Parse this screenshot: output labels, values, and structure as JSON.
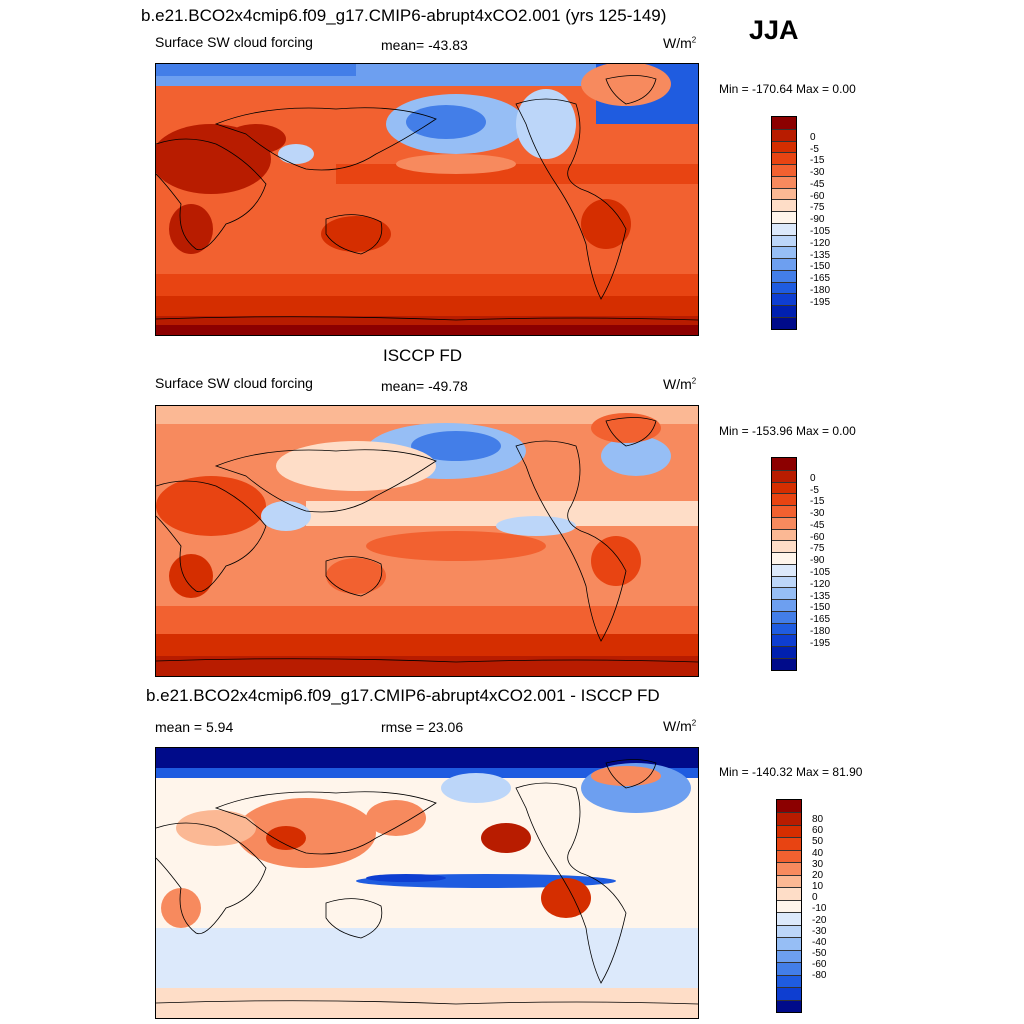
{
  "season": "JJA",
  "colors": {
    "neg": [
      "#8c0000",
      "#b81c00",
      "#d52e00",
      "#e84412",
      "#f26130",
      "#f78a5e",
      "#fbb894",
      "#feddc7",
      "#fff5eb",
      "#dce9fb",
      "#bcd6f9",
      "#96bef5",
      "#6d9ff0",
      "#437ee8",
      "#1f5ce0",
      "#0e3ed1",
      "#0020b0",
      "#000b8a"
    ],
    "diff": [
      "#8c0000",
      "#b81c00",
      "#d52e00",
      "#e84412",
      "#f26130",
      "#f78a5e",
      "#fbb894",
      "#feddc7",
      "#fff5eb",
      "#dce9fb",
      "#bcd6f9",
      "#96bef5",
      "#6d9ff0",
      "#437ee8",
      "#1f5ce0",
      "#0e3ed1",
      "#000b8a"
    ]
  },
  "panels": [
    {
      "title": "b.e21.BCO2x4cmip6.f09_g17.CMIP6-abrupt4xCO2.001 (yrs 125-149)",
      "left": "Surface SW cloud forcing",
      "center": "mean= -43.83",
      "units": "W/m",
      "units_sup": "2",
      "minmax": "Min = -170.64 Max =   0.00",
      "ticks": [
        "0",
        "-5",
        "-15",
        "-30",
        "-45",
        "-60",
        "-75",
        "-90",
        "-105",
        "-120",
        "-135",
        "-150",
        "-165",
        "-180",
        "-195"
      ]
    },
    {
      "title": "ISCCP FD",
      "left": "Surface SW cloud forcing",
      "center": "mean= -49.78",
      "units": "W/m",
      "units_sup": "2",
      "minmax": "Min = -153.96 Max =   0.00",
      "ticks": [
        "0",
        "-5",
        "-15",
        "-30",
        "-45",
        "-60",
        "-75",
        "-90",
        "-105",
        "-120",
        "-135",
        "-150",
        "-165",
        "-180",
        "-195"
      ]
    },
    {
      "title": "b.e21.BCO2x4cmip6.f09_g17.CMIP6-abrupt4xCO2.001 - ISCCP FD",
      "left": "mean =   5.94",
      "center": "rmse =  23.06",
      "units": "W/m",
      "units_sup": "2",
      "minmax": "Min = -140.32 Max =  81.90",
      "ticks": [
        "80",
        "60",
        "50",
        "40",
        "30",
        "20",
        "10",
        "0",
        "-10",
        "-20",
        "-30",
        "-40",
        "-50",
        "-60",
        "-80"
      ]
    }
  ]
}
